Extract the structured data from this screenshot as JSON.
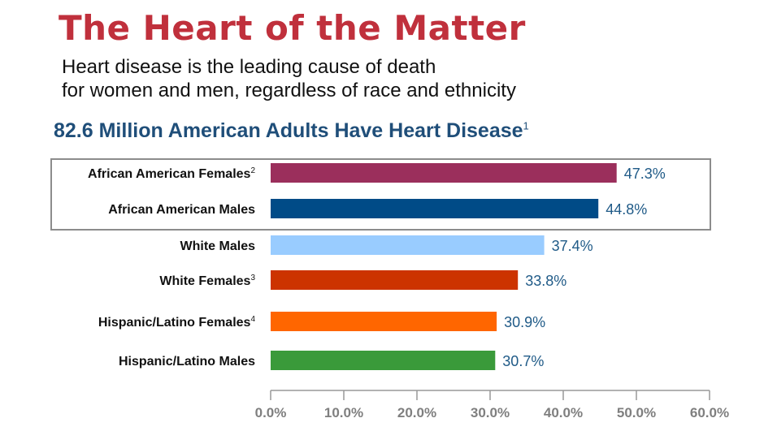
{
  "header": {
    "title": "The Heart of the Matter",
    "subtitle_line1": "Heart disease is the leading cause of death",
    "subtitle_line2": "for women and men, regardless of race and ethnicity",
    "chart_heading": "82.6 Million American Adults Have Heart Disease",
    "chart_heading_note": "1"
  },
  "chart_data": {
    "type": "bar",
    "orientation": "horizontal",
    "title": "82.6 Million American Adults Have Heart Disease",
    "categories": [
      "African American Females",
      "African American Males",
      "White Males",
      "White Females",
      "Hispanic/Latino Females",
      "Hispanic/Latino Males"
    ],
    "category_notes": [
      "2",
      "",
      "",
      "3",
      "4",
      ""
    ],
    "values": [
      47.3,
      44.8,
      37.4,
      33.8,
      30.9,
      30.7
    ],
    "value_labels": [
      "47.3%",
      "44.8%",
      "37.4%",
      "33.8%",
      "30.9%",
      "30.7%"
    ],
    "colors": [
      "#9b2f5c",
      "#004b87",
      "#99ccff",
      "#cc3300",
      "#ff6600",
      "#3a9a3a"
    ],
    "xlim": [
      0,
      60
    ],
    "xticks": [
      "0.0%",
      "10.0%",
      "20.0%",
      "30.0%",
      "40.0%",
      "50.0%",
      "60.0%"
    ],
    "highlighted_categories": [
      "African American Females",
      "African American Males"
    ],
    "xlabel": "",
    "ylabel": "",
    "grid": false
  }
}
